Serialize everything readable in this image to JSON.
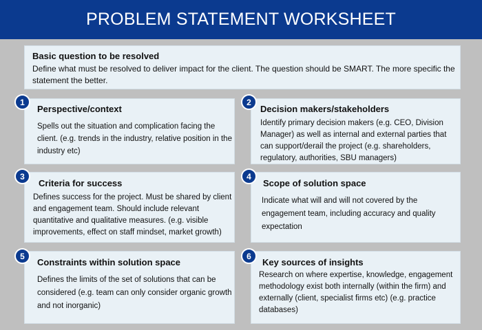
{
  "header": {
    "title": "PROBLEM STATEMENT WORKSHEET"
  },
  "basic": {
    "heading": "Basic question to be resolved",
    "text": "Define what must be resolved to deliver impact for the client. The question should be SMART. The more specific the statement the better."
  },
  "cards": [
    {
      "number": "1",
      "heading": "Perspective/context",
      "text": "Spells out the situation and complication facing the client. (e.g. trends in the industry, relative position in the industry etc)"
    },
    {
      "number": "2",
      "heading": "Decision makers/stakeholders",
      "text": "Identify primary decision makers (e.g. CEO, Division Manager) as well as internal and external parties that can support/derail the project (e.g. shareholders, regulatory, authorities, SBU managers)"
    },
    {
      "number": "3",
      "heading": "Criteria for success",
      "text": "Defines success for the project. Must be shared by client and engagement team. Should include relevant quantitative and qualitative measures. (e.g. visible improvements, effect on staff mindset, market growth)"
    },
    {
      "number": "4",
      "heading": "Scope of solution space",
      "text": "Indicate what will and will not covered by the engagement team, including accuracy and quality expectation"
    },
    {
      "number": "5",
      "heading": "Constraints within solution space",
      "text": "Defines the limits of the set of solutions that can be considered (e.g. team can only consider organic growth and not inorganic)"
    },
    {
      "number": "6",
      "heading": "Key sources of insights",
      "text": "Research on where expertise, knowledge, engagement methodology exist both internally (within the firm) and externally (client, specialist firms etc) (e.g. practice databases)"
    }
  ],
  "colors": {
    "header_bg": "#0b3a8f",
    "page_bg": "#bfbfbf",
    "card_bg": "#e9f1f6",
    "badge_bg": "#0b3a8f"
  }
}
